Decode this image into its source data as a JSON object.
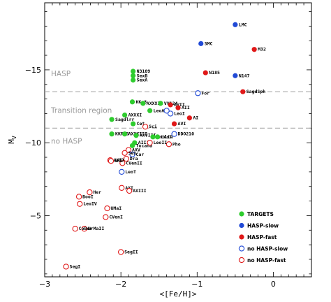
{
  "chart_data": {
    "type": "scatter",
    "xlabel": "<[Fe/H]>",
    "ylabel": "M_V",
    "xlim": [
      -3,
      0.5
    ],
    "ylim": [
      -0.8,
      -19.6
    ],
    "x_ticks": [
      -3,
      -2,
      -1,
      0
    ],
    "y_ticks": [
      -5,
      -10,
      -15
    ],
    "grid": false,
    "legend_position": "bottom-right",
    "regions": {
      "hasp_label": "HASP",
      "transition_label": "Transition region",
      "nohasp_label": "no HASP",
      "upper_boundary": -13.5,
      "lower_boundary": -11.0
    },
    "series": [
      {
        "name": "TARGETS",
        "marker": "filled",
        "color": "#2ecc2e",
        "points": [
          {
            "label": "N3109",
            "x": -1.84,
            "y": -14.9
          },
          {
            "label": "SexB",
            "x": -1.84,
            "y": -14.6
          },
          {
            "label": "SexA",
            "x": -1.84,
            "y": -14.3
          },
          {
            "label": "KKs3",
            "x": -1.85,
            "y": -12.8
          },
          {
            "label": "AXXXII",
            "x": -1.71,
            "y": -12.7
          },
          {
            "label": "VV124",
            "x": -1.48,
            "y": -12.7
          },
          {
            "label": "LeoA",
            "x": -1.62,
            "y": -12.2
          },
          {
            "label": "AXXXI",
            "x": -1.95,
            "y": -11.9
          },
          {
            "label": "Sagdlrr",
            "x": -2.12,
            "y": -11.6
          },
          {
            "label": "Cet",
            "x": -1.84,
            "y": -11.3
          },
          {
            "label": "KKR25",
            "x": -2.12,
            "y": -10.6
          },
          {
            "label": "AXXXIII",
            "x": -1.95,
            "y": -10.6
          },
          {
            "label": "AXVIII",
            "x": -1.8,
            "y": -10.5
          },
          {
            "label": "Antlia",
            "x": -1.58,
            "y": -10.4
          },
          {
            "label": "LeoT",
            "x": -1.52,
            "y": -10.4
          },
          {
            "label": "AIII",
            "x": -1.82,
            "y": -10.0
          },
          {
            "label": "Tucana",
            "x": -1.85,
            "y": -9.8
          }
        ]
      },
      {
        "name": "HASP-slow",
        "marker": "filled",
        "color": "#2049d6",
        "points": [
          {
            "label": "LMC",
            "x": -0.5,
            "y": -18.1
          },
          {
            "label": "SMC",
            "x": -0.95,
            "y": -16.8
          },
          {
            "label": "N147",
            "x": -0.5,
            "y": -14.6
          }
        ]
      },
      {
        "name": "HASP-fast",
        "marker": "filled",
        "color": "#e01818",
        "points": [
          {
            "label": "M32",
            "x": -0.25,
            "y": -16.4
          },
          {
            "label": "N185",
            "x": -0.89,
            "y": -14.8
          },
          {
            "label": "SagdSph",
            "x": -0.4,
            "y": -13.5
          },
          {
            "label": "AVII",
            "x": -1.35,
            "y": -12.6
          },
          {
            "label": "AII",
            "x": -1.25,
            "y": -12.4
          },
          {
            "label": "AI",
            "x": -1.1,
            "y": -11.7
          },
          {
            "label": "AVI",
            "x": -1.3,
            "y": -11.3
          }
        ]
      },
      {
        "name": "no HASP-slow",
        "marker": "open",
        "color": "#2049d6",
        "points": [
          {
            "label": "For",
            "x": -0.99,
            "y": -13.4
          },
          {
            "label": "LeoI",
            "x": -1.35,
            "y": -12.0
          },
          {
            "label": "",
            "x": -1.4,
            "y": -12.2
          },
          {
            "label": "DDO210",
            "x": -1.3,
            "y": -10.6
          },
          {
            "label": "Car",
            "x": -1.85,
            "y": -9.2
          },
          {
            "label": "LeoT",
            "x": -1.99,
            "y": -8.0
          }
        ]
      },
      {
        "name": "no HASP-fast",
        "marker": "open",
        "color": "#e01818",
        "points": [
          {
            "label": "Sci",
            "x": -1.68,
            "y": -11.1
          },
          {
            "label": "Pho",
            "x": -1.37,
            "y": -9.9
          },
          {
            "label": "LeoII",
            "x": -1.62,
            "y": -10.0
          },
          {
            "label": "AXV",
            "x": -1.9,
            "y": -9.5
          },
          {
            "label": "Sex",
            "x": -1.95,
            "y": -9.3
          },
          {
            "label": "Dra",
            "x": -1.93,
            "y": -8.9
          },
          {
            "label": "CVenII",
            "x": -1.98,
            "y": -8.6
          },
          {
            "label": "AXIX",
            "x": -2.14,
            "y": -8.8
          },
          {
            "label": "UMi",
            "x": -2.13,
            "y": -8.75
          },
          {
            "label": "AXI",
            "x": -1.99,
            "y": -6.9
          },
          {
            "label": "AXIII",
            "x": -1.89,
            "y": -6.7
          },
          {
            "label": "Her",
            "x": -2.41,
            "y": -6.6
          },
          {
            "label": "BooI",
            "x": -2.55,
            "y": -6.3
          },
          {
            "label": "LeoIV",
            "x": -2.54,
            "y": -5.8
          },
          {
            "label": "UMaI",
            "x": -2.18,
            "y": -5.5
          },
          {
            "label": "CVenI",
            "x": -2.2,
            "y": -4.9
          },
          {
            "label": "UrMaII",
            "x": -2.48,
            "y": -4.1
          },
          {
            "label": "CoBer",
            "x": -2.6,
            "y": -4.1
          },
          {
            "label": "SegII",
            "x": -2.0,
            "y": -2.5
          },
          {
            "label": "SegI",
            "x": -2.72,
            "y": -1.5
          }
        ]
      }
    ]
  }
}
